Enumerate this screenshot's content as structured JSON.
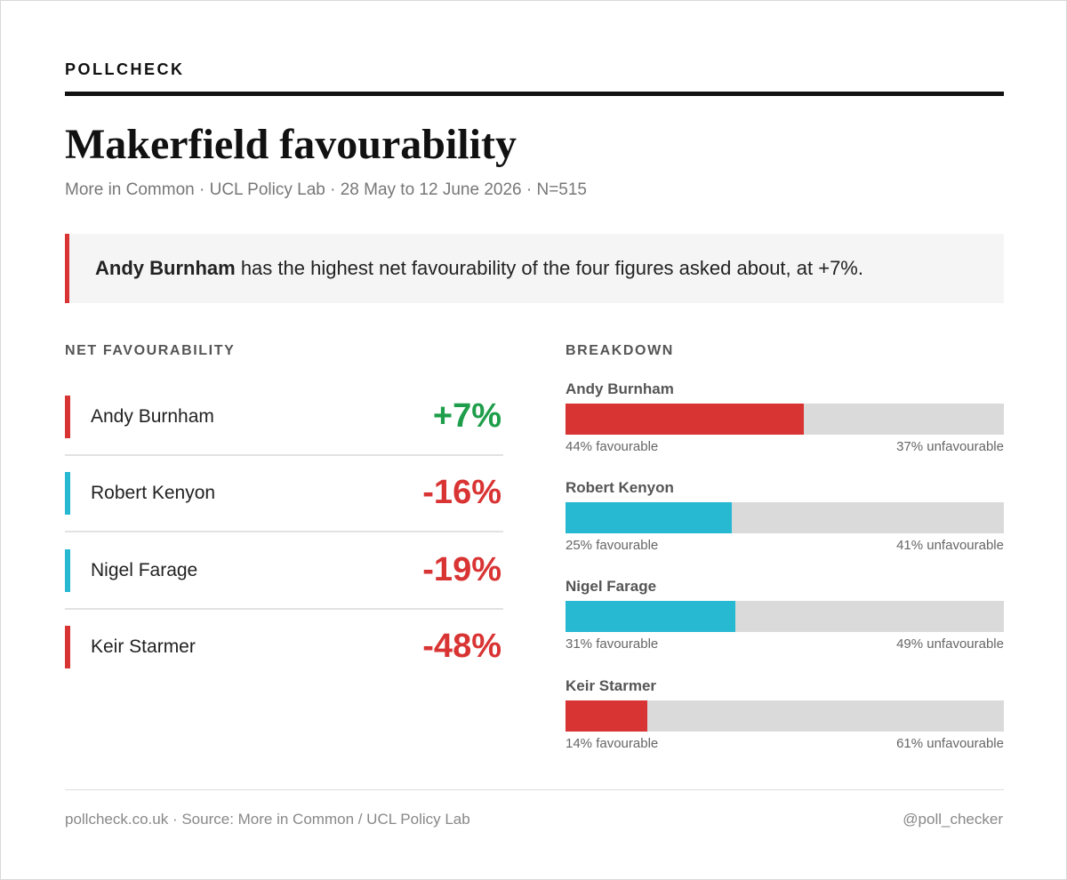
{
  "header": {
    "brand": "POLLCHECK"
  },
  "title": "Makerfield favourability",
  "subtitle": "More in Common · UCL Policy Lab · 28 May to 12 June 2026 · N=515",
  "callout": {
    "bold": "Andy Burnham",
    "text": "has the highest net favourability of the four figures asked about, at +7%."
  },
  "net": {
    "heading": "NET FAVOURABILITY",
    "rows": [
      {
        "name": "Andy Burnham",
        "color": "#d93434",
        "net": {
          "value": 7,
          "label": "+7%"
        }
      },
      {
        "name": "Robert Kenyon",
        "color": "#27b9d1",
        "net": {
          "value": -16,
          "label": "-16%"
        }
      },
      {
        "name": "Nigel Farage",
        "color": "#27b9d1",
        "net": {
          "value": -19,
          "label": "-19%"
        }
      },
      {
        "name": "Keir Starmer",
        "color": "#d93434",
        "net": {
          "value": -48,
          "label": "-48%"
        }
      }
    ]
  },
  "breakdown": {
    "heading": "BREAKDOWN",
    "rows": [
      {
        "name": "Andy Burnham",
        "color": "#d93434",
        "favourable": {
          "value": 44,
          "label": "44% favourable"
        },
        "unfavourable": {
          "value": 37,
          "label": "37% unfavourable"
        }
      },
      {
        "name": "Robert Kenyon",
        "color": "#27b9d1",
        "favourable": {
          "value": 25,
          "label": "25% favourable"
        },
        "unfavourable": {
          "value": 41,
          "label": "41% unfavourable"
        }
      },
      {
        "name": "Nigel Farage",
        "color": "#27b9d1",
        "favourable": {
          "value": 31,
          "label": "31% favourable"
        },
        "unfavourable": {
          "value": 49,
          "label": "49% unfavourable"
        }
      },
      {
        "name": "Keir Starmer",
        "color": "#d93434",
        "favourable": {
          "value": 14,
          "label": "14% favourable"
        },
        "unfavourable": {
          "value": 61,
          "label": "61% unfavourable"
        }
      }
    ]
  },
  "footer": {
    "source": "pollcheck.co.uk · Source: More in Common / UCL Policy Lab",
    "handle": "@poll_checker"
  }
}
